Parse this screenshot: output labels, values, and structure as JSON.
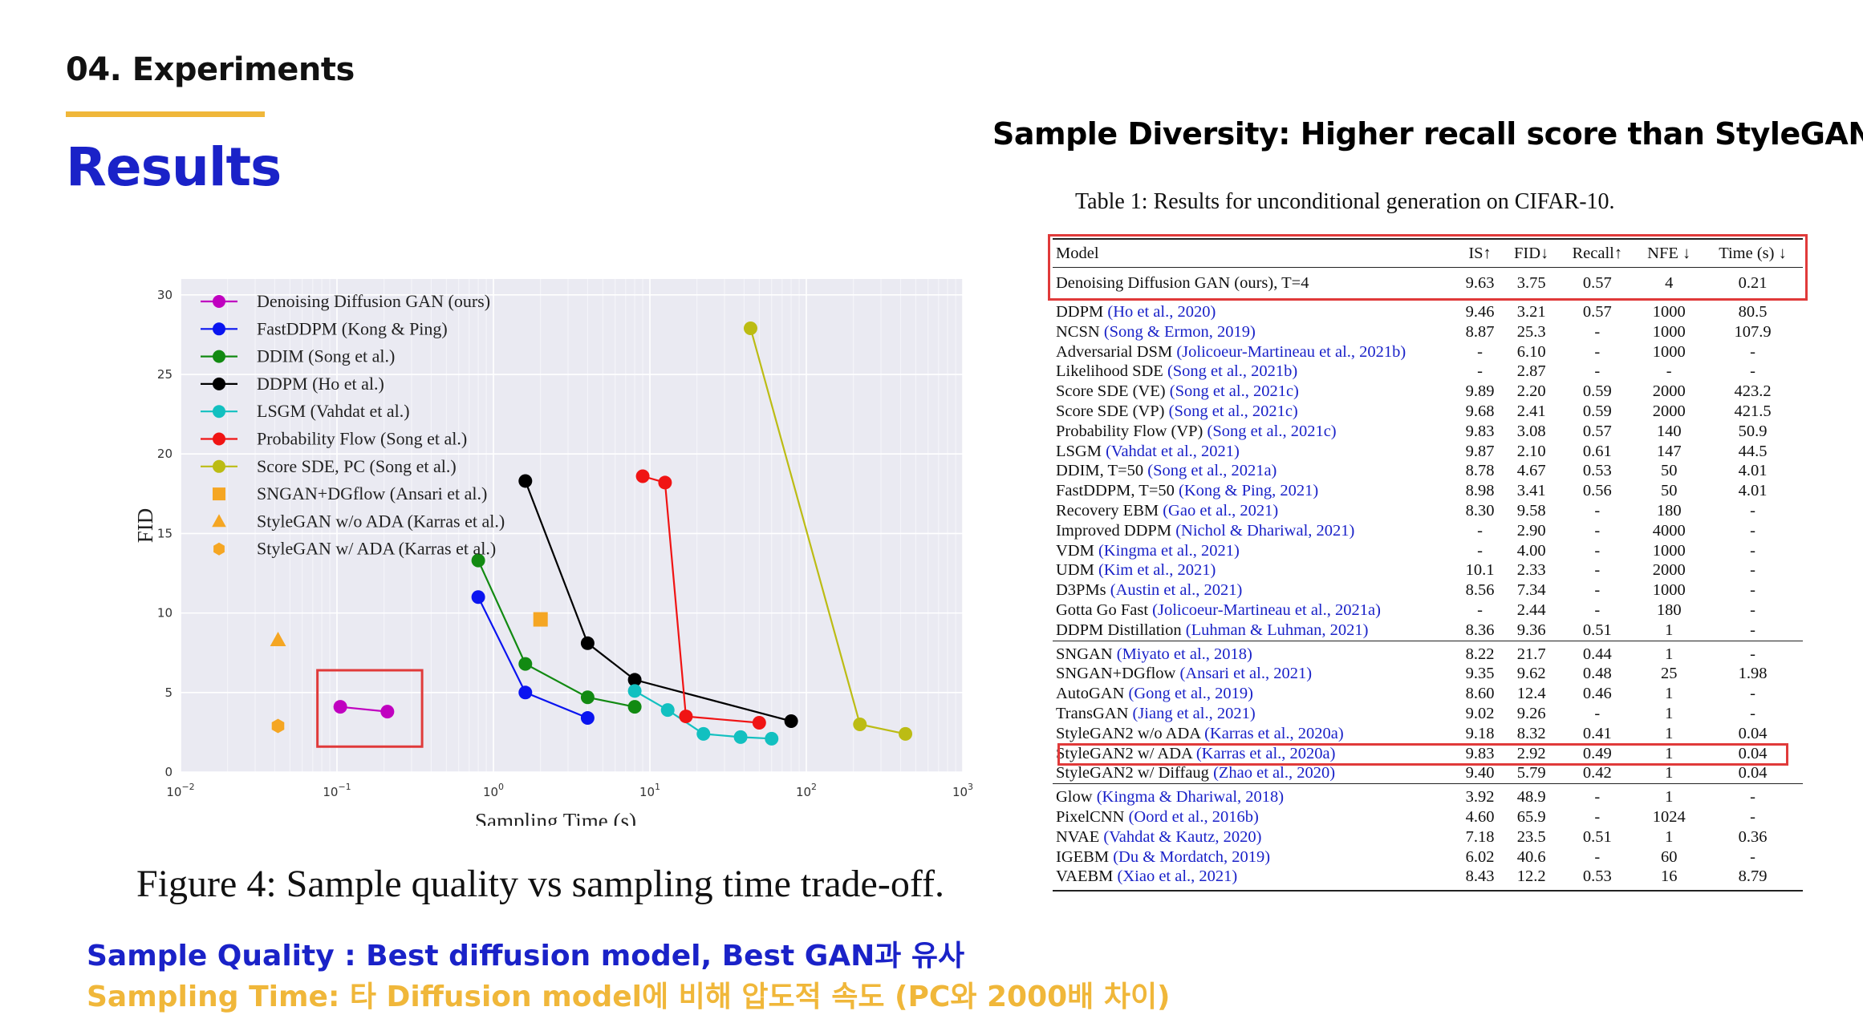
{
  "slide": {
    "section_label": "04. Experiments",
    "title": "Results",
    "right_heading": "Sample Diversity: Higher recall score than StyleGAN",
    "figure_caption": "Figure 4:  Sample quality vs sampling time trade-off.",
    "bottom_quality": "Sample Quality : Best diffusion model, Best GAN과 유사",
    "bottom_time": "Sampling Time: 타 Diffusion model에 비해 압도적 속도 (PC와 2000배 차이)",
    "accent_color": "#f0b73a",
    "title_color": "#1a22c8",
    "highlight_color": "#e03a3a"
  },
  "chart_data": {
    "type": "scatter",
    "xlabel": "Sampling Time (s)",
    "ylabel": "FID",
    "xscale": "log",
    "xlim": [
      0.01,
      1000
    ],
    "ylim": [
      0,
      31
    ],
    "x_ticks": [
      {
        "value": 0.01,
        "base": "10",
        "exp": "−2"
      },
      {
        "value": 0.1,
        "base": "10",
        "exp": "−1"
      },
      {
        "value": 1,
        "base": "10",
        "exp": "0"
      },
      {
        "value": 10,
        "base": "10",
        "exp": "1"
      },
      {
        "value": 100,
        "base": "10",
        "exp": "2"
      },
      {
        "value": 1000,
        "base": "10",
        "exp": "3"
      }
    ],
    "y_ticks": [
      "0",
      "5",
      "10",
      "15",
      "20",
      "25",
      "30"
    ],
    "grid": true,
    "legend_position": "top-left",
    "series": [
      {
        "name": "Denoising Diffusion GAN (ours)",
        "color": "#c000c0",
        "marker": "circle",
        "points": [
          [
            0.105,
            4.1
          ],
          [
            0.21,
            3.8
          ]
        ]
      },
      {
        "name": "FastDDPM (Kong & Ping)",
        "color": "#0a14f0",
        "marker": "circle",
        "points": [
          [
            0.8,
            11.0
          ],
          [
            1.6,
            5.0
          ],
          [
            4.0,
            3.4
          ]
        ]
      },
      {
        "name": "DDIM (Song et al.)",
        "color": "#128a12",
        "marker": "circle",
        "points": [
          [
            0.8,
            13.3
          ],
          [
            1.6,
            6.8
          ],
          [
            4.0,
            4.7
          ],
          [
            8.0,
            4.1
          ]
        ]
      },
      {
        "name": "DDPM (Ho et al.)",
        "color": "#000000",
        "marker": "circle",
        "points": [
          [
            1.6,
            18.3
          ],
          [
            4.0,
            8.1
          ],
          [
            8.0,
            5.8
          ],
          [
            80.0,
            3.2
          ]
        ]
      },
      {
        "name": "LSGM (Vahdat et al.)",
        "color": "#12c0c0",
        "marker": "circle",
        "points": [
          [
            8.0,
            5.1
          ],
          [
            13.0,
            3.9
          ],
          [
            22.0,
            2.4
          ],
          [
            38.0,
            2.2
          ],
          [
            60.0,
            2.1
          ]
        ]
      },
      {
        "name": "Probability Flow (Song et al.)",
        "color": "#f01414",
        "marker": "circle",
        "points": [
          [
            9.0,
            18.6
          ],
          [
            12.5,
            18.2
          ],
          [
            17.0,
            3.5
          ],
          [
            50.0,
            3.1
          ]
        ]
      },
      {
        "name": "Score SDE, PC (Song et al.)",
        "color": "#bcbc14",
        "marker": "circle",
        "points": [
          [
            44.0,
            27.9
          ],
          [
            220.0,
            3.0
          ],
          [
            430.0,
            2.4
          ]
        ]
      },
      {
        "name": "SNGAN+DGflow (Ansari et al.)",
        "color": "#f5a623",
        "marker": "square",
        "points": [
          [
            2.0,
            9.6
          ]
        ]
      },
      {
        "name": "StyleGAN w/o ADA (Karras et al.)",
        "color": "#f5a623",
        "marker": "triangle",
        "points": [
          [
            0.042,
            8.3
          ]
        ]
      },
      {
        "name": "StyleGAN w/ ADA (Karras et al.)",
        "color": "#f5a623",
        "marker": "hexagon",
        "points": [
          [
            0.042,
            2.9
          ]
        ]
      }
    ],
    "highlight_box": {
      "x_range": [
        0.075,
        0.35
      ],
      "y_range": [
        1.6,
        6.4
      ]
    }
  },
  "table": {
    "caption": "Table 1: Results for unconditional generation on CIFAR-10.",
    "headers": [
      "Model",
      "IS↑",
      "FID↓",
      "Recall↑",
      "NFE ↓",
      "Time (s) ↓"
    ],
    "ours": {
      "model": "Denoising Diffusion GAN (ours), T=4",
      "cite": "",
      "vals": [
        "9.63",
        "3.75",
        "0.57",
        "4",
        "0.21"
      ]
    },
    "groups": [
      [
        {
          "model": "DDPM",
          "cite": "(Ho et al., 2020)",
          "vals": [
            "9.46",
            "3.21",
            "0.57",
            "1000",
            "80.5"
          ]
        },
        {
          "model": "NCSN",
          "cite": "(Song & Ermon, 2019)",
          "vals": [
            "8.87",
            "25.3",
            "-",
            "1000",
            "107.9"
          ]
        },
        {
          "model": "Adversarial DSM",
          "cite": "(Jolicoeur-Martineau et al., 2021b)",
          "vals": [
            "-",
            "6.10",
            "-",
            "1000",
            "-"
          ]
        },
        {
          "model": "Likelihood SDE",
          "cite": "(Song et al., 2021b)",
          "vals": [
            "-",
            "2.87",
            "-",
            "-",
            "-"
          ]
        },
        {
          "model": "Score SDE (VE)",
          "cite": "(Song et al., 2021c)",
          "vals": [
            "9.89",
            "2.20",
            "0.59",
            "2000",
            "423.2"
          ]
        },
        {
          "model": "Score SDE (VP)",
          "cite": "(Song et al., 2021c)",
          "vals": [
            "9.68",
            "2.41",
            "0.59",
            "2000",
            "421.5"
          ]
        },
        {
          "model": "Probability Flow (VP)",
          "cite": "(Song et al., 2021c)",
          "vals": [
            "9.83",
            "3.08",
            "0.57",
            "140",
            "50.9"
          ]
        },
        {
          "model": "LSGM",
          "cite": "(Vahdat et al., 2021)",
          "vals": [
            "9.87",
            "2.10",
            "0.61",
            "147",
            "44.5"
          ]
        },
        {
          "model": "DDIM, T=50",
          "cite": "(Song et al., 2021a)",
          "vals": [
            "8.78",
            "4.67",
            "0.53",
            "50",
            "4.01"
          ]
        },
        {
          "model": "FastDDPM, T=50",
          "cite": "(Kong & Ping, 2021)",
          "vals": [
            "8.98",
            "3.41",
            "0.56",
            "50",
            "4.01"
          ]
        },
        {
          "model": "Recovery EBM",
          "cite": "(Gao et al., 2021)",
          "vals": [
            "8.30",
            "9.58",
            "-",
            "180",
            "-"
          ]
        },
        {
          "model": "Improved DDPM",
          "cite": "(Nichol & Dhariwal, 2021)",
          "vals": [
            "-",
            "2.90",
            "-",
            "4000",
            "-"
          ]
        },
        {
          "model": "VDM",
          "cite": "(Kingma et al., 2021)",
          "vals": [
            "-",
            "4.00",
            "-",
            "1000",
            "-"
          ]
        },
        {
          "model": "UDM",
          "cite": "(Kim et al., 2021)",
          "vals": [
            "10.1",
            "2.33",
            "-",
            "2000",
            "-"
          ]
        },
        {
          "model": "D3PMs",
          "cite": "(Austin et al., 2021)",
          "vals": [
            "8.56",
            "7.34",
            "-",
            "1000",
            "-"
          ]
        },
        {
          "model": "Gotta Go Fast",
          "cite": "(Jolicoeur-Martineau et al., 2021a)",
          "vals": [
            "-",
            "2.44",
            "-",
            "180",
            "-"
          ]
        },
        {
          "model": "DDPM Distillation",
          "cite": "(Luhman & Luhman, 2021)",
          "vals": [
            "8.36",
            "9.36",
            "0.51",
            "1",
            "-"
          ]
        }
      ],
      [
        {
          "model": "SNGAN",
          "cite": "(Miyato et al., 2018)",
          "vals": [
            "8.22",
            "21.7",
            "0.44",
            "1",
            "-"
          ]
        },
        {
          "model": "SNGAN+DGflow",
          "cite": "(Ansari et al., 2021)",
          "vals": [
            "9.35",
            "9.62",
            "0.48",
            "25",
            "1.98"
          ]
        },
        {
          "model": "AutoGAN",
          "cite": "(Gong et al., 2019)",
          "vals": [
            "8.60",
            "12.4",
            "0.46",
            "1",
            "-"
          ]
        },
        {
          "model": "TransGAN",
          "cite": "(Jiang et al., 2021)",
          "vals": [
            "9.02",
            "9.26",
            "-",
            "1",
            "-"
          ]
        },
        {
          "model": "StyleGAN2 w/o ADA",
          "cite": "(Karras et al., 2020a)",
          "vals": [
            "9.18",
            "8.32",
            "0.41",
            "1",
            "0.04"
          ]
        },
        {
          "model": "StyleGAN2 w/ ADA",
          "cite": "(Karras et al., 2020a)",
          "vals": [
            "9.83",
            "2.92",
            "0.49",
            "1",
            "0.04"
          ]
        },
        {
          "model": "StyleGAN2 w/ Diffaug",
          "cite": "(Zhao et al., 2020)",
          "vals": [
            "9.40",
            "5.79",
            "0.42",
            "1",
            "0.04"
          ]
        }
      ],
      [
        {
          "model": "Glow",
          "cite": "(Kingma & Dhariwal, 2018)",
          "vals": [
            "3.92",
            "48.9",
            "-",
            "1",
            "-"
          ]
        },
        {
          "model": "PixelCNN",
          "cite": "(Oord et al., 2016b)",
          "vals": [
            "4.60",
            "65.9",
            "-",
            "1024",
            "-"
          ]
        },
        {
          "model": "NVAE",
          "cite": "(Vahdat & Kautz, 2020)",
          "vals": [
            "7.18",
            "23.5",
            "0.51",
            "1",
            "0.36"
          ]
        },
        {
          "model": "IGEBM",
          "cite": "(Du & Mordatch, 2019)",
          "vals": [
            "6.02",
            "40.6",
            "-",
            "60",
            "-"
          ]
        },
        {
          "model": "VAEBM",
          "cite": "(Xiao et al., 2021)",
          "vals": [
            "8.43",
            "12.2",
            "0.53",
            "16",
            "8.79"
          ]
        }
      ]
    ]
  }
}
